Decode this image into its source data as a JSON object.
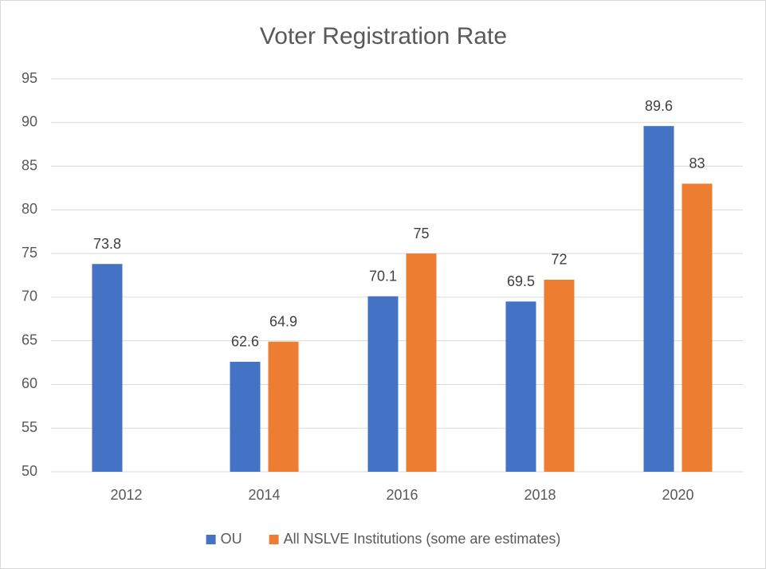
{
  "chart_data": {
    "type": "bar",
    "title": "Voter Registration Rate",
    "categories": [
      "2012",
      "2014",
      "2016",
      "2018",
      "2020"
    ],
    "series": [
      {
        "name": "OU",
        "color": "#4472c4",
        "values": [
          73.8,
          62.6,
          70.1,
          69.5,
          89.6
        ]
      },
      {
        "name": "All NSLVE Institutions (some are estimates)",
        "color": "#ed7d31",
        "values": [
          null,
          64.9,
          75,
          72,
          83
        ]
      }
    ],
    "ylim": [
      50,
      95
    ],
    "yticks": [
      50,
      55,
      60,
      65,
      70,
      75,
      80,
      85,
      90,
      95
    ],
    "grid": true,
    "legend": "bottom"
  }
}
